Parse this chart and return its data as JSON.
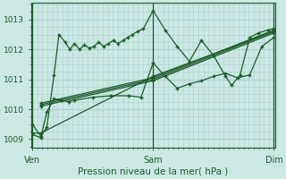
{
  "bg_color": "#cce8e5",
  "grid_color": "#aad0cc",
  "line_color": "#1a5c28",
  "title": "Pression niveau de la mer( hPa )",
  "xlabel_ticks": [
    "Ven",
    "Sam",
    "Dim"
  ],
  "xlabel_tick_pos": [
    0.0,
    1.0,
    2.0
  ],
  "ylim": [
    1008.7,
    1013.55
  ],
  "xlim": [
    -0.01,
    2.01
  ],
  "yticks": [
    1009,
    1010,
    1011,
    1012,
    1013
  ],
  "series": [
    {
      "x": [
        0.0,
        0.07,
        0.12,
        0.18,
        0.22,
        0.27,
        0.31,
        0.35,
        0.39,
        0.43,
        0.47,
        0.51,
        0.55,
        0.59,
        0.63,
        0.67,
        0.71,
        0.75,
        0.79,
        0.83,
        0.87,
        0.92,
        1.0,
        1.1,
        1.2,
        1.3,
        1.4,
        1.5,
        1.6,
        1.65,
        1.72,
        1.8,
        1.87,
        1.95,
        2.0
      ],
      "y": [
        1009.5,
        1009.1,
        1009.4,
        1011.15,
        1012.5,
        1012.25,
        1012.0,
        1012.2,
        1012.0,
        1012.15,
        1012.05,
        1012.1,
        1012.25,
        1012.1,
        1012.2,
        1012.3,
        1012.2,
        1012.3,
        1012.4,
        1012.5,
        1012.6,
        1012.7,
        1013.3,
        1012.65,
        1012.1,
        1011.6,
        1012.3,
        1011.8,
        1011.1,
        1010.8,
        1011.15,
        1012.4,
        1012.55,
        1012.65,
        1012.7
      ]
    },
    {
      "x": [
        0.0,
        0.07,
        1.0,
        2.0
      ],
      "y": [
        1009.2,
        1009.2,
        1011.1,
        1012.6
      ]
    },
    {
      "x": [
        0.07,
        1.0,
        2.0
      ],
      "y": [
        1010.1,
        1010.95,
        1012.55
      ]
    },
    {
      "x": [
        0.07,
        1.0,
        2.0
      ],
      "y": [
        1010.15,
        1011.0,
        1012.6
      ]
    },
    {
      "x": [
        0.07,
        1.0,
        2.0
      ],
      "y": [
        1010.2,
        1011.05,
        1012.65
      ]
    },
    {
      "x": [
        0.0,
        0.07,
        0.12,
        0.18,
        0.24,
        0.3,
        0.35,
        0.5,
        0.65,
        0.8,
        0.9,
        1.0,
        1.1,
        1.2,
        1.3,
        1.4,
        1.5,
        1.6,
        1.7,
        1.8,
        1.9,
        2.0
      ],
      "y": [
        1009.15,
        1009.05,
        1009.9,
        1010.35,
        1010.3,
        1010.25,
        1010.3,
        1010.4,
        1010.45,
        1010.45,
        1010.4,
        1011.55,
        1011.1,
        1010.7,
        1010.85,
        1010.95,
        1011.1,
        1011.2,
        1011.05,
        1011.15,
        1012.1,
        1012.4
      ]
    }
  ]
}
